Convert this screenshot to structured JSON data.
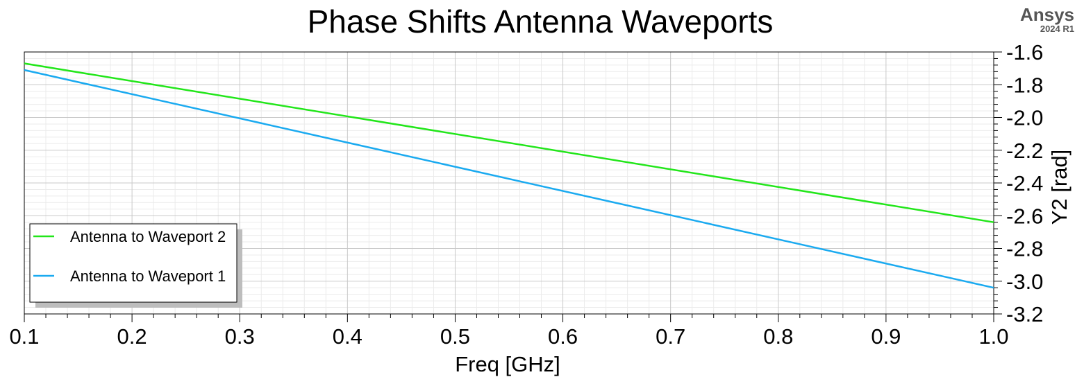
{
  "brand": {
    "name": "Ansys",
    "version": "2024 R1"
  },
  "chart_data": {
    "type": "line",
    "title": "Phase Shifts Antenna Waveports",
    "xlabel": "Freq [GHz]",
    "ylabel": "Y2 [rad]",
    "xlim": [
      0.1,
      1.0
    ],
    "ylim": [
      -3.2,
      -1.6
    ],
    "x_ticks": [
      "0.1",
      "0.2",
      "0.3",
      "0.4",
      "0.5",
      "0.6",
      "0.7",
      "0.8",
      "0.9",
      "1.0"
    ],
    "y_ticks": [
      "-1.6",
      "-1.8",
      "-2.0",
      "-2.2",
      "-2.4",
      "-2.6",
      "-2.8",
      "-3.0",
      "-3.2"
    ],
    "y_axis_side": "right",
    "grid": true,
    "legend_position": "bottom-left",
    "series": [
      {
        "name": "Antenna to Waveport 2",
        "color": "#22e61a",
        "x": [
          0.1,
          1.0
        ],
        "y": [
          -1.67,
          -2.64
        ]
      },
      {
        "name": "Antenna to Waveport 1",
        "color": "#1aaaf0",
        "x": [
          0.1,
          1.0
        ],
        "y": [
          -1.71,
          -3.04
        ]
      }
    ]
  }
}
